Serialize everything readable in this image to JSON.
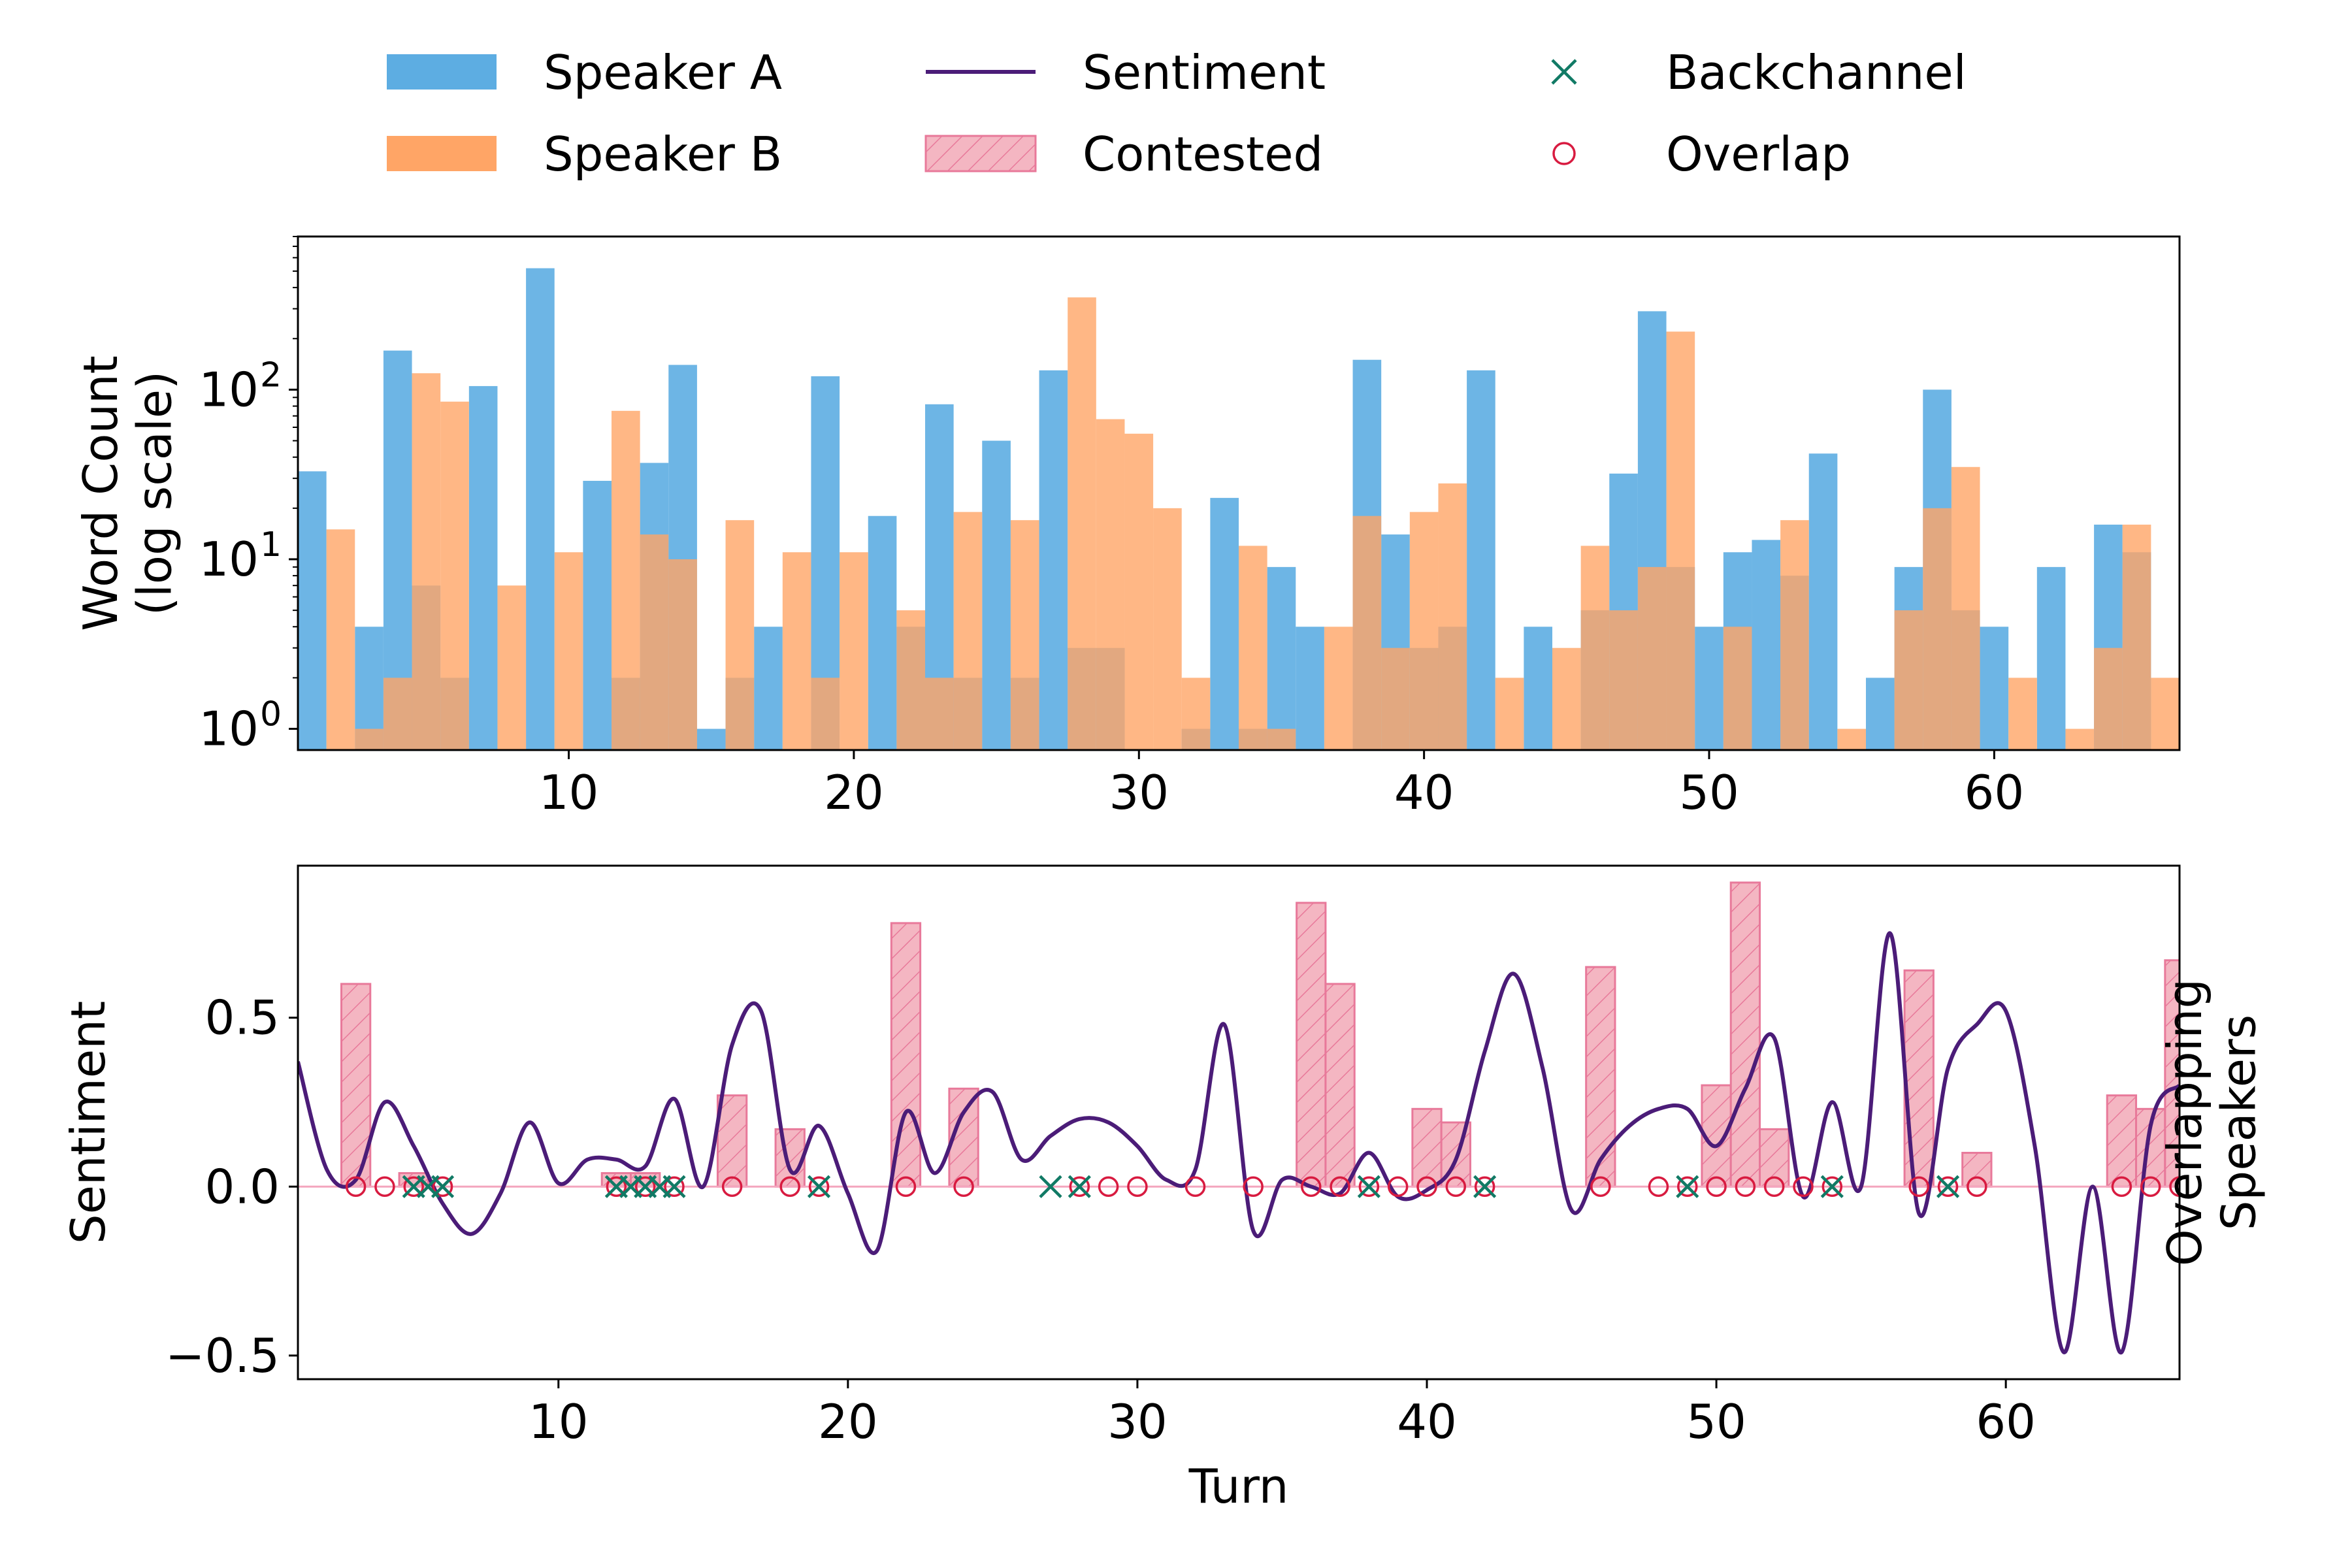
{
  "chart_data": [
    {
      "type": "bar",
      "panel": "word-count",
      "ylabel": "Word Count\n(log scale)",
      "yscale": "log",
      "ylim": [
        0.75,
        800
      ],
      "xlim": [
        0.5,
        66.5
      ],
      "xticks": [
        10,
        20,
        30,
        40,
        50,
        60
      ],
      "yticks": [
        {
          "value": 1,
          "label": "10^0"
        },
        {
          "value": 10,
          "label": "10^1"
        },
        {
          "value": 100,
          "label": "10^2"
        }
      ],
      "x": [
        1,
        2,
        3,
        4,
        5,
        6,
        7,
        8,
        9,
        10,
        11,
        12,
        13,
        14,
        15,
        16,
        17,
        18,
        19,
        20,
        21,
        22,
        23,
        24,
        25,
        26,
        27,
        28,
        29,
        30,
        31,
        32,
        33,
        34,
        35,
        36,
        37,
        38,
        39,
        40,
        41,
        42,
        43,
        44,
        45,
        46,
        47,
        48,
        49,
        50,
        51,
        52,
        53,
        54,
        55,
        56,
        57,
        58,
        59,
        60,
        61,
        62,
        63,
        64,
        65,
        66
      ],
      "series": [
        {
          "name": "Speaker A",
          "color": "#5DADE2",
          "values": [
            33,
            0,
            4,
            170,
            7,
            2,
            105,
            0,
            520,
            0,
            29,
            2,
            37,
            140,
            1,
            2,
            4,
            0,
            120,
            0,
            18,
            4,
            82,
            2,
            50,
            2,
            130,
            3,
            3,
            0,
            0,
            1,
            23,
            1,
            9,
            4,
            0,
            150,
            14,
            3,
            4,
            130,
            0,
            4,
            0,
            5,
            32,
            290,
            9,
            4,
            11,
            13,
            8,
            42,
            0,
            2,
            9,
            100,
            5,
            4,
            0,
            9,
            0,
            16,
            11,
            0
          ]
        },
        {
          "name": "Speaker B",
          "color": "#FFA566",
          "values": [
            0,
            15,
            1,
            2,
            125,
            85,
            0,
            7,
            0,
            11,
            0,
            75,
            14,
            10,
            0,
            17,
            0,
            11,
            2,
            11,
            0,
            5,
            2,
            19,
            0,
            17,
            0,
            350,
            67,
            55,
            20,
            2,
            0,
            12,
            1,
            0,
            4,
            18,
            3,
            19,
            28,
            0,
            2,
            0,
            3,
            12,
            5,
            9,
            220,
            0,
            4,
            0,
            17,
            0,
            1,
            0,
            5,
            20,
            35,
            0,
            2,
            0,
            1,
            3,
            16,
            2
          ]
        }
      ],
      "legend": {
        "placement": "top",
        "columns": 3,
        "ncol_order": "column"
      }
    },
    {
      "type": "line",
      "panel": "sentiment",
      "xlabel": "Turn",
      "ylabel": "Sentiment",
      "y2label": "Overlapping\nSpeakers",
      "xlim": [
        1,
        66
      ],
      "ylim": [
        -0.57,
        0.95
      ],
      "xticks": [
        10,
        20,
        30,
        40,
        50,
        60
      ],
      "yticks": [
        {
          "value": -0.5,
          "label": "−0.5"
        },
        {
          "value": 0.0,
          "label": "0.0"
        },
        {
          "value": 0.5,
          "label": "0.5"
        }
      ],
      "sentiment": {
        "name": "Sentiment",
        "color": "#4B1C78",
        "x": [
          1,
          2,
          3,
          4,
          5,
          6,
          7,
          8,
          9,
          10,
          11,
          12,
          13,
          14,
          15,
          16,
          17,
          18,
          19,
          20,
          21,
          22,
          23,
          24,
          25,
          26,
          27,
          28,
          29,
          30,
          31,
          32,
          33,
          34,
          35,
          36,
          37,
          38,
          39,
          40,
          41,
          42,
          43,
          44,
          45,
          46,
          47,
          48,
          49,
          50,
          51,
          52,
          53,
          54,
          55,
          56,
          57,
          58,
          59,
          60,
          61,
          62,
          63,
          64,
          65,
          66
        ],
        "values": [
          0.37,
          0.05,
          0.02,
          0.25,
          0.12,
          -0.05,
          -0.14,
          -0.02,
          0.19,
          0.01,
          0.08,
          0.08,
          0.06,
          0.26,
          0.0,
          0.42,
          0.52,
          0.05,
          0.18,
          -0.02,
          -0.19,
          0.22,
          0.04,
          0.22,
          0.28,
          0.08,
          0.15,
          0.2,
          0.19,
          0.12,
          0.02,
          0.05,
          0.48,
          -0.13,
          0.02,
          0.0,
          -0.02,
          0.1,
          -0.03,
          -0.01,
          0.08,
          0.4,
          0.63,
          0.35,
          -0.07,
          0.08,
          0.18,
          0.23,
          0.23,
          0.12,
          0.29,
          0.44,
          -0.03,
          0.25,
          0.0,
          0.75,
          -0.08,
          0.35,
          0.48,
          0.52,
          0.12,
          -0.49,
          0.0,
          -0.49,
          0.18,
          0.3
        ]
      },
      "contested": {
        "name": "Contested",
        "color": "#F4B6C2",
        "edge": "#E8799A",
        "x": [
          3,
          5,
          12,
          13,
          16,
          18,
          22,
          24,
          36,
          37,
          40,
          41,
          46,
          50,
          51,
          52,
          57,
          59,
          64,
          65,
          66
        ],
        "values": [
          0.6,
          0.04,
          0.04,
          0.04,
          0.27,
          0.17,
          0.78,
          0.29,
          0.84,
          0.6,
          0.23,
          0.19,
          0.65,
          0.3,
          0.9,
          0.17,
          0.64,
          0.1,
          0.27,
          0.23,
          0.67
        ]
      },
      "overlap": {
        "name": "Overlap",
        "color": "#D81B40",
        "x": [
          3,
          4,
          5,
          6,
          12,
          13,
          14,
          16,
          18,
          19,
          22,
          24,
          28,
          29,
          30,
          32,
          34,
          36,
          37,
          38,
          39,
          40,
          41,
          42,
          46,
          48,
          49,
          50,
          51,
          52,
          53,
          54,
          57,
          58,
          59,
          64,
          65,
          66
        ]
      },
      "backchannel": {
        "name": "Backchannel",
        "color": "#117A65",
        "x": [
          5,
          5.5,
          6,
          12,
          12.5,
          13,
          13.5,
          14,
          19,
          27,
          28,
          38,
          42,
          49,
          54,
          58
        ]
      },
      "baseline": {
        "value": 0,
        "color": "#F4A6BE"
      }
    }
  ],
  "legend": {
    "items": [
      {
        "label": "Speaker A",
        "kind": "bar",
        "color": "#5DADE2"
      },
      {
        "label": "Speaker B",
        "kind": "bar",
        "color": "#FFA566"
      },
      {
        "label": "Sentiment",
        "kind": "line",
        "color": "#4B1C78"
      },
      {
        "label": "Contested",
        "kind": "hatch",
        "color": "#F4B6C2",
        "edge": "#E8799A"
      },
      {
        "label": "Backchannel",
        "kind": "x",
        "color": "#117A65"
      },
      {
        "label": "Overlap",
        "kind": "circle",
        "color": "#D81B40"
      }
    ]
  }
}
